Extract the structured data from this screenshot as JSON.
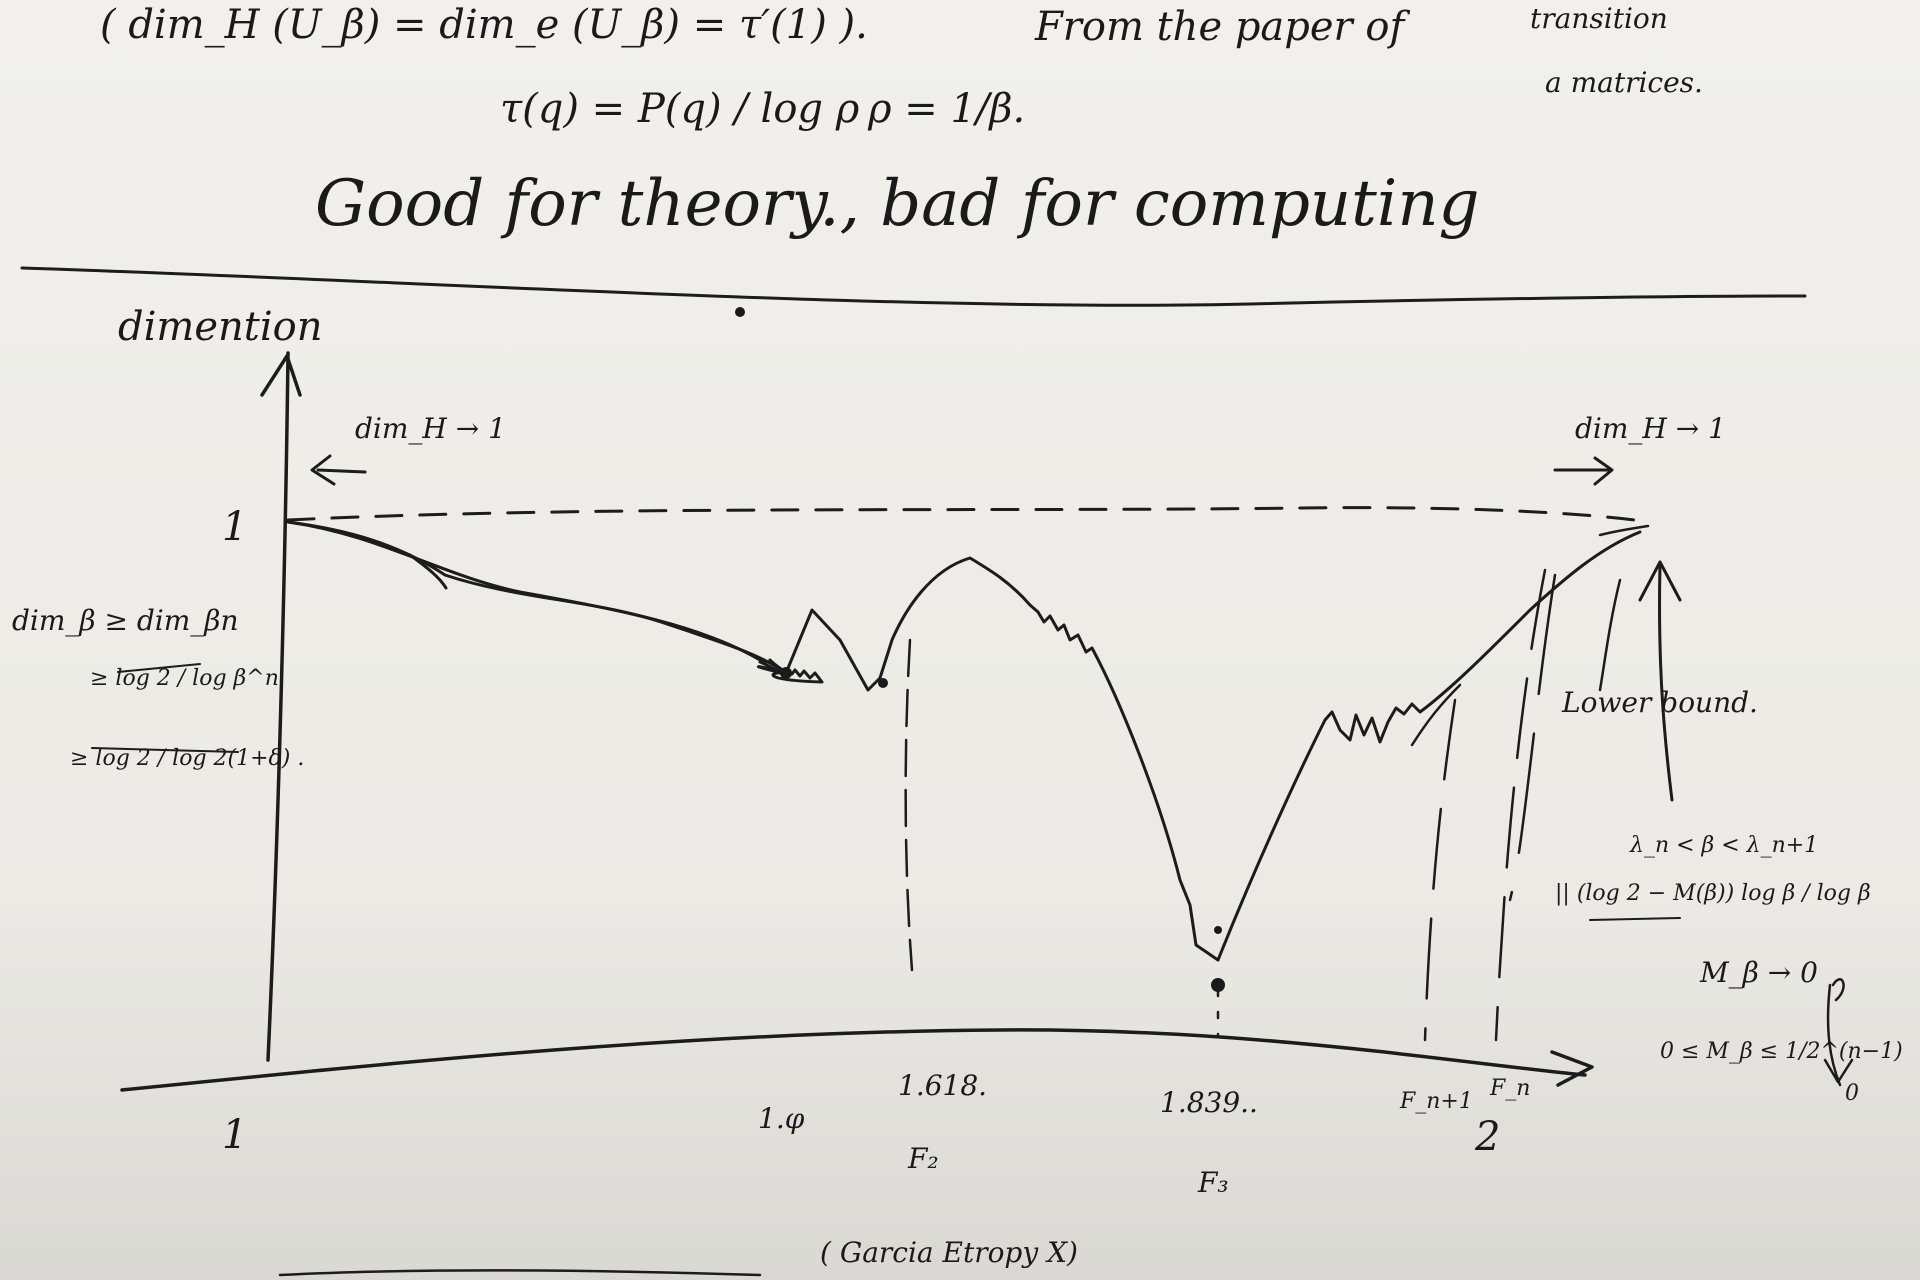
{
  "header": {
    "line1_formula": "( dim_H (U_β) = dim_e (U_β) = τ′(1) ).",
    "line1_note": "From the paper of",
    "transition_note": "transition",
    "matrices_note": "a matrices.",
    "tau_formula": "τ(q) = P(q) / log ρ",
    "rho_formula": "ρ = 1/β.",
    "verdict": "Good for theory., bad for computing"
  },
  "plot": {
    "y_axis_label": "dimention",
    "y_tick_one": "1",
    "left_limit_note": "dim_H → 1",
    "right_limit_note": "dim_H → 1",
    "lower_bound_label": "Lower bound.",
    "left_inequality": [
      "dim_β ≥ dim_βn",
      "≥ log 2 / log β^n",
      "≥ log 2 / log 2(1+δ) ."
    ],
    "right_notes": [
      "λ_n < β < λ_n+1",
      "|| (log 2 − M(β)) log β / log β",
      "M_β → 0",
      "0 ≤ M_β ≤ 1/2^(n−1)",
      "0"
    ],
    "x_ticks": [
      "1",
      "1.φ",
      "1.618.",
      "1.839..",
      "F_n+1",
      "F_n",
      "2"
    ],
    "x_tick_sublabels": [
      "F₂",
      "F₃"
    ]
  },
  "footer": {
    "bottom_note": "( Garcia Etropy X)"
  }
}
